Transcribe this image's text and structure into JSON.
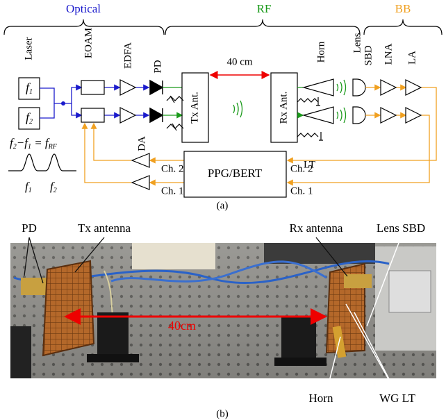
{
  "sections": {
    "optical": "Optical",
    "rf": "RF",
    "bb": "BB"
  },
  "diagram": {
    "laser": "Laser",
    "sources": [
      {
        "symbol": "f",
        "sub": "1"
      },
      {
        "symbol": "f",
        "sub": "2"
      }
    ],
    "eoam": "EOAM",
    "edfa": "EDFA",
    "pd": "PD",
    "tx": "Tx Ant.",
    "distance": "40 cm",
    "rx": "Rx Ant.",
    "horn": "Horn",
    "lens": "Lens",
    "sbd": "SBD",
    "lna": "LNA",
    "la": "LA",
    "lt": "LT",
    "da": "DA",
    "ppg": "PPG/BERT",
    "left_channels": [
      "Ch. 2",
      "Ch. 1"
    ],
    "right_channels": [
      "Ch. 2",
      "Ch. 1"
    ],
    "formula": [
      {
        "text": "f",
        "sub": "2"
      },
      {
        "text": "−f",
        "sub": "1"
      },
      {
        "text": " = f",
        "sub": "RF"
      }
    ],
    "spectrum": [
      {
        "symbol": "f",
        "sub": "1"
      },
      {
        "symbol": "f",
        "sub": "2"
      }
    ],
    "caption": "(a)"
  },
  "photo": {
    "pd": "PD",
    "tx": "Tx antenna",
    "rx": "Rx antenna",
    "lens_sbd": "Lens SBD",
    "distance": "40cm",
    "horn": "Horn",
    "wg_lt": "WG LT",
    "caption": "(b)"
  }
}
